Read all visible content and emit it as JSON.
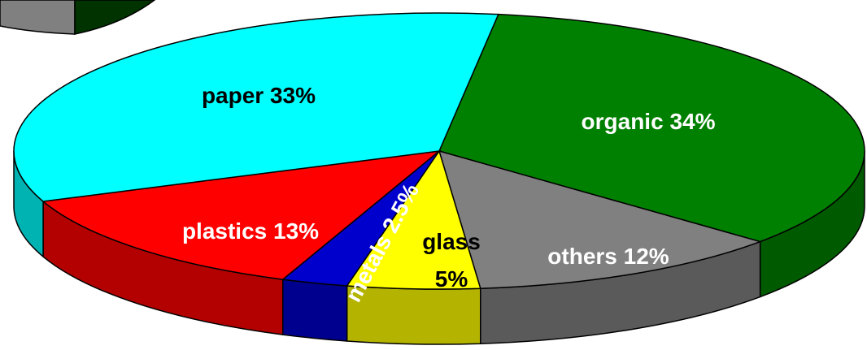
{
  "chart_data": {
    "type": "pie",
    "categories": [
      "organic",
      "others",
      "glass",
      "metals",
      "plastics",
      "paper"
    ],
    "values": [
      34,
      12,
      5,
      2.5,
      13,
      33
    ],
    "value_labels": [
      "34%",
      "12%",
      "5%",
      "2.5%",
      "13%",
      "33%"
    ],
    "colors": [
      "#008000",
      "#808080",
      "#ffff00",
      "#0000cc",
      "#ff0000",
      "#00ffff"
    ],
    "label_colors": [
      "#ffffff",
      "#ffffff",
      "#000000",
      "#ffffff",
      "#ffffff",
      "#000000"
    ]
  }
}
